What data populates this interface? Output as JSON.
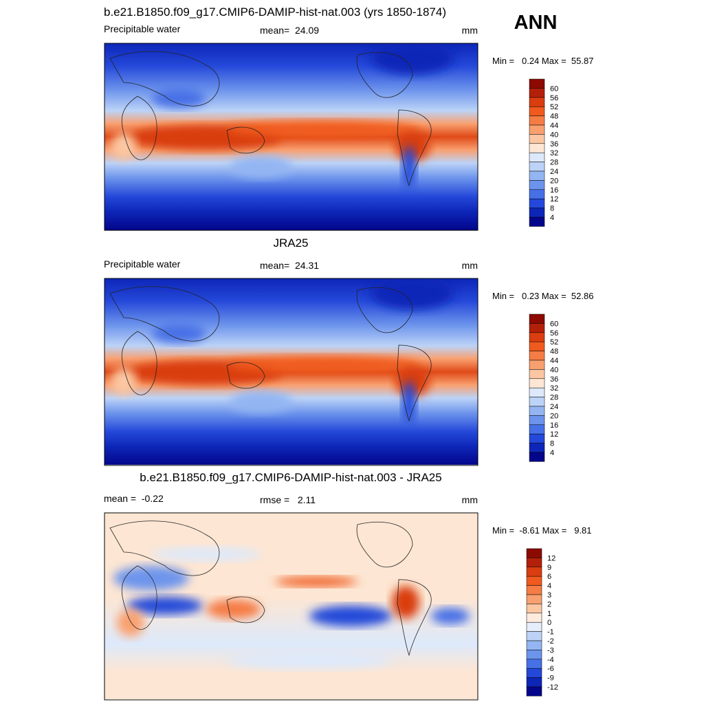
{
  "header": {
    "season": "ANN"
  },
  "panels": [
    {
      "title": "b.e21.B1850.f09_g17.CMIP6-DAMIP-hist-nat.003 (yrs 1850-1874)",
      "left": "Precipitable water",
      "center": "mean=  24.09",
      "units": "mm",
      "minmax": "Min =   0.24 Max =  55.87",
      "colorbar": [
        60,
        56,
        52,
        48,
        44,
        40,
        36,
        32,
        28,
        24,
        20,
        16,
        12,
        8,
        4
      ]
    },
    {
      "title": "JRA25",
      "left": "Precipitable water",
      "center": "mean=  24.31",
      "units": "mm",
      "minmax": "Min =   0.23 Max =  52.86",
      "colorbar": [
        60,
        56,
        52,
        48,
        44,
        40,
        36,
        32,
        28,
        24,
        20,
        16,
        12,
        8,
        4
      ]
    },
    {
      "title": "b.e21.B1850.f09_g17.CMIP6-DAMIP-hist-nat.003 - JRA25",
      "left": "mean =  -0.22",
      "center": "rmse =   2.11",
      "units": "mm",
      "minmax": "Min =  -8.61 Max =   9.81",
      "colorbar": [
        12,
        9,
        6,
        4,
        3,
        2,
        1,
        0,
        -1,
        -2,
        -3,
        -4,
        -6,
        -9,
        -12
      ]
    }
  ]
}
